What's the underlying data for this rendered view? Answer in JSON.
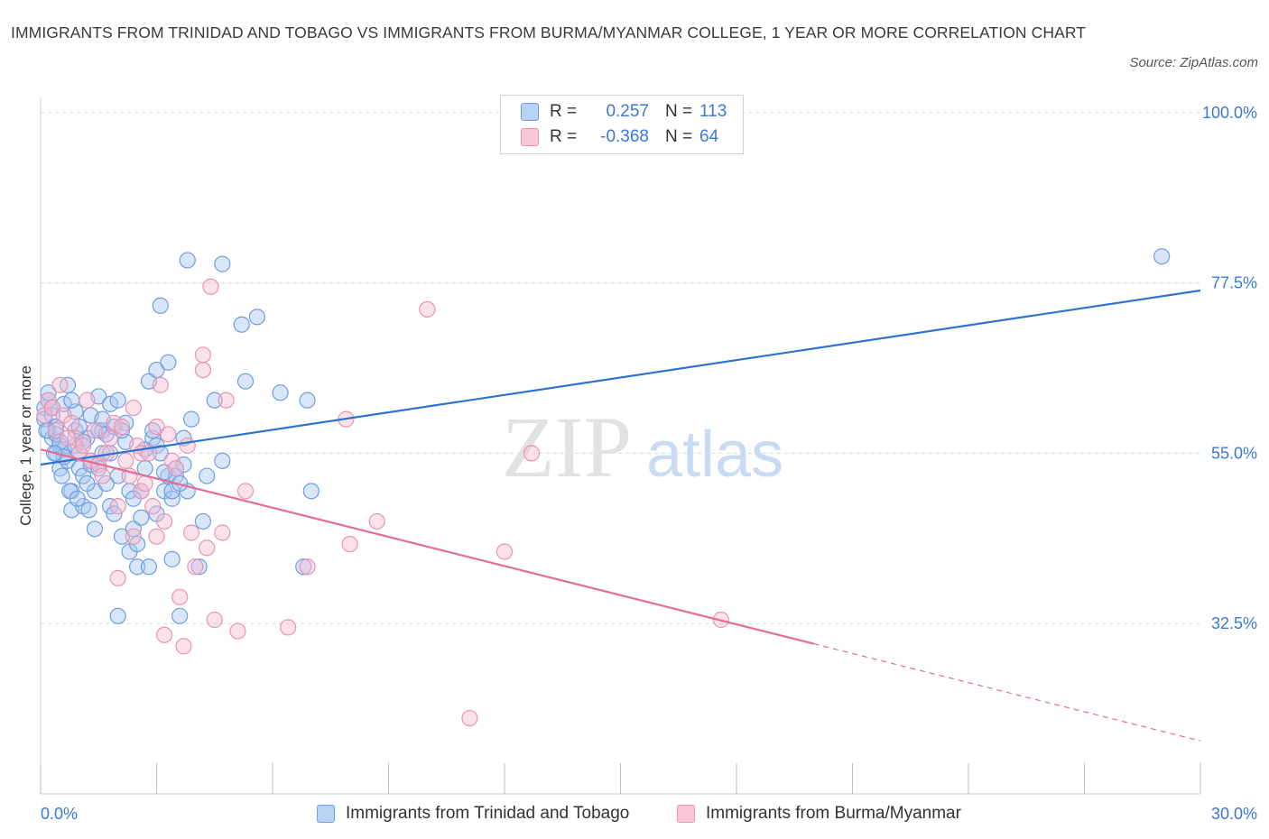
{
  "title": "IMMIGRANTS FROM TRINIDAD AND TOBAGO VS IMMIGRANTS FROM BURMA/MYANMAR COLLEGE, 1 YEAR OR MORE CORRELATION CHART",
  "source": "Source: ZipAtlas.com",
  "watermark": {
    "zip": "ZIP",
    "atlas": "atlas"
  },
  "legend": {
    "series1": {
      "r_label": "R =",
      "r_value": "0.257",
      "n_label": "N =",
      "n_value": "113"
    },
    "series2": {
      "r_label": "R =",
      "r_value": "-0.368",
      "n_label": "N =",
      "n_value": "64"
    }
  },
  "colors": {
    "blue_fill": "#a9c8f0",
    "blue_stroke": "#6f9ee0",
    "blue_line": "#2f73d0",
    "pink_fill": "#f5bcd0",
    "pink_stroke": "#e894b2",
    "pink_line": "#e46c98",
    "tick_label": "#3a78d8",
    "grid": "#d8d8d8"
  },
  "chart_data": {
    "type": "scatter",
    "title": "IMMIGRANTS FROM TRINIDAD AND TOBAGO VS IMMIGRANTS FROM BURMA/MYANMAR COLLEGE, 1 YEAR OR MORE CORRELATION CHART",
    "xlabel": "",
    "ylabel": "College, 1 year or more",
    "xlim": [
      0,
      30
    ],
    "ylim": [
      10,
      102
    ],
    "x_tick_labels": [
      "0.0%",
      "30.0%"
    ],
    "y_ticks": [
      100.0,
      77.5,
      55.0,
      32.5
    ],
    "y_tick_labels": [
      "100.0%",
      "77.5%",
      "55.0%",
      "32.5%"
    ],
    "grid": true,
    "legend_position": "top-center",
    "series": [
      {
        "name": "Immigrants from Trinidad and Tobago",
        "color": "blue",
        "R": 0.257,
        "N": 113,
        "trend": {
          "x": [
            0,
            30
          ],
          "y": [
            53.5,
            76.5
          ],
          "dashed_from": null
        },
        "points": [
          [
            0.1,
            61
          ],
          [
            0.1,
            59.5
          ],
          [
            0.2,
            58
          ],
          [
            0.2,
            62
          ],
          [
            0.3,
            57
          ],
          [
            0.3,
            60
          ],
          [
            0.4,
            55
          ],
          [
            0.4,
            58.5
          ],
          [
            0.5,
            56
          ],
          [
            0.5,
            53
          ],
          [
            0.6,
            61.5
          ],
          [
            0.6,
            55.5
          ],
          [
            0.7,
            64
          ],
          [
            0.7,
            54
          ],
          [
            0.8,
            50
          ],
          [
            0.8,
            47.5
          ],
          [
            0.9,
            58
          ],
          [
            0.9,
            56
          ],
          [
            1.0,
            53
          ],
          [
            1.0,
            55
          ],
          [
            1.1,
            52
          ],
          [
            1.1,
            48
          ],
          [
            1.2,
            57
          ],
          [
            1.3,
            60
          ],
          [
            1.3,
            53.5
          ],
          [
            1.4,
            45
          ],
          [
            1.4,
            50
          ],
          [
            1.5,
            62.5
          ],
          [
            1.5,
            58
          ],
          [
            1.6,
            58
          ],
          [
            1.6,
            55
          ],
          [
            1.7,
            51
          ],
          [
            1.7,
            57.5
          ],
          [
            1.8,
            48
          ],
          [
            1.8,
            61.5
          ],
          [
            1.9,
            47
          ],
          [
            1.9,
            58.5
          ],
          [
            2.0,
            52
          ],
          [
            2.0,
            62
          ],
          [
            2.0,
            33.5
          ],
          [
            2.1,
            44
          ],
          [
            2.2,
            56.5
          ],
          [
            2.2,
            59
          ],
          [
            2.3,
            50
          ],
          [
            2.3,
            42
          ],
          [
            2.4,
            45
          ],
          [
            2.5,
            40
          ],
          [
            2.5,
            43
          ],
          [
            2.6,
            50
          ],
          [
            2.7,
            55.5
          ],
          [
            2.8,
            64.5
          ],
          [
            2.8,
            40
          ],
          [
            2.9,
            57
          ],
          [
            2.9,
            58
          ],
          [
            3.0,
            47
          ],
          [
            3.0,
            56
          ],
          [
            3.1,
            55
          ],
          [
            3.0,
            66
          ],
          [
            3.1,
            74.5
          ],
          [
            3.2,
            50
          ],
          [
            3.3,
            67
          ],
          [
            3.3,
            52
          ],
          [
            3.4,
            49
          ],
          [
            3.4,
            50
          ],
          [
            3.4,
            41
          ],
          [
            3.5,
            52
          ],
          [
            3.5,
            53
          ],
          [
            3.6,
            33.5
          ],
          [
            3.7,
            57
          ],
          [
            3.7,
            53.5
          ],
          [
            3.8,
            50
          ],
          [
            3.8,
            80.5
          ],
          [
            3.9,
            59.5
          ],
          [
            4.1,
            40
          ],
          [
            4.2,
            46
          ],
          [
            4.3,
            52
          ],
          [
            4.5,
            62
          ],
          [
            4.7,
            80
          ],
          [
            4.7,
            54
          ],
          [
            5.2,
            72
          ],
          [
            5.3,
            64.5
          ],
          [
            5.6,
            73
          ],
          [
            6.2,
            63
          ],
          [
            6.8,
            40
          ],
          [
            6.9,
            62
          ],
          [
            7.0,
            50
          ],
          [
            1.2,
            51
          ],
          [
            0.3,
            61
          ],
          [
            0.4,
            57.5
          ],
          [
            0.6,
            54.5
          ],
          [
            0.9,
            60.5
          ],
          [
            1.1,
            56.5
          ],
          [
            1.5,
            53
          ],
          [
            1.8,
            55
          ],
          [
            2.1,
            58
          ],
          [
            2.6,
            46.5
          ],
          [
            3.2,
            52.5
          ],
          [
            0.2,
            63
          ],
          [
            0.5,
            56.5
          ],
          [
            0.8,
            62
          ],
          [
            1.0,
            58.5
          ],
          [
            1.3,
            54
          ],
          [
            1.6,
            59.5
          ],
          [
            2.4,
            49
          ],
          [
            2.7,
            53
          ],
          [
            3.6,
            51
          ],
          [
            0.15,
            58
          ],
          [
            0.35,
            55
          ],
          [
            0.55,
            52
          ],
          [
            0.75,
            50
          ],
          [
            0.95,
            49
          ],
          [
            1.25,
            47.5
          ],
          [
            29.0,
            81
          ]
        ]
      },
      {
        "name": "Immigrants from Burma/Myanmar",
        "color": "pink",
        "R": -0.368,
        "N": 64,
        "trend": {
          "x": [
            0,
            30
          ],
          "y": [
            55.5,
            17
          ],
          "dashed_from": 20
        },
        "points": [
          [
            0.1,
            60
          ],
          [
            0.2,
            62
          ],
          [
            0.3,
            61
          ],
          [
            0.4,
            58
          ],
          [
            0.5,
            64
          ],
          [
            0.6,
            60
          ],
          [
            0.8,
            59
          ],
          [
            0.9,
            57
          ],
          [
            1.0,
            55
          ],
          [
            1.1,
            56
          ],
          [
            1.2,
            62
          ],
          [
            1.3,
            54
          ],
          [
            1.4,
            58
          ],
          [
            1.5,
            53.5
          ],
          [
            1.6,
            52
          ],
          [
            1.7,
            55
          ],
          [
            1.8,
            57
          ],
          [
            1.9,
            59
          ],
          [
            2.0,
            48
          ],
          [
            2.0,
            38.5
          ],
          [
            2.1,
            58.5
          ],
          [
            2.2,
            54
          ],
          [
            2.3,
            52
          ],
          [
            2.4,
            44
          ],
          [
            2.5,
            56
          ],
          [
            2.6,
            55
          ],
          [
            2.6,
            50
          ],
          [
            2.7,
            51
          ],
          [
            2.8,
            55
          ],
          [
            2.9,
            48
          ],
          [
            3.0,
            58.5
          ],
          [
            3.0,
            44
          ],
          [
            3.1,
            64
          ],
          [
            3.2,
            31
          ],
          [
            3.2,
            46
          ],
          [
            3.3,
            57.5
          ],
          [
            3.4,
            54
          ],
          [
            3.5,
            53
          ],
          [
            3.6,
            36
          ],
          [
            3.7,
            29.5
          ],
          [
            3.8,
            56
          ],
          [
            3.9,
            44.5
          ],
          [
            4.0,
            40
          ],
          [
            4.2,
            66
          ],
          [
            4.2,
            68
          ],
          [
            4.3,
            42.5
          ],
          [
            4.4,
            77
          ],
          [
            4.5,
            33
          ],
          [
            4.7,
            44.5
          ],
          [
            4.8,
            62
          ],
          [
            5.1,
            31.5
          ],
          [
            5.3,
            50
          ],
          [
            6.4,
            32
          ],
          [
            6.9,
            40
          ],
          [
            7.9,
            59.5
          ],
          [
            8.0,
            43
          ],
          [
            8.7,
            46
          ],
          [
            10.0,
            74
          ],
          [
            11.1,
            20
          ],
          [
            12.0,
            42
          ],
          [
            12.7,
            55
          ],
          [
            17.6,
            33
          ],
          [
            0.7,
            57
          ],
          [
            2.4,
            61
          ]
        ]
      }
    ]
  },
  "bottom_legend": {
    "item1": "Immigrants from Trinidad and Tobago",
    "item2": "Immigrants from Burma/Myanmar"
  }
}
